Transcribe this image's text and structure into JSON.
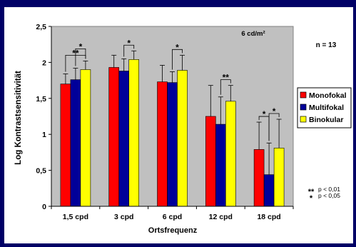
{
  "slide": {
    "background": "#000066",
    "panel_color": "#ffffff"
  },
  "chart_data": {
    "type": "bar",
    "xlabel": "Ortsfrequenz",
    "ylabel": "Log Kontrastsensitivität",
    "ylim": [
      0,
      2.5
    ],
    "yticks": [
      "0",
      "0,5",
      "1",
      "1,5",
      "2",
      "2,5"
    ],
    "plot_background": "#c0c0c0",
    "grid": false,
    "categories": [
      "1,5 cpd",
      "3 cpd",
      "6 cpd",
      "12 cpd",
      "18 cpd"
    ],
    "series": [
      {
        "name": "Monofokal",
        "color": "#ff0000",
        "values": [
          1.7,
          1.93,
          1.73,
          1.25,
          0.79
        ],
        "errors": [
          0.14,
          0.17,
          0.23,
          0.43,
          0.38
        ]
      },
      {
        "name": "Multifokal",
        "color": "#000099",
        "values": [
          1.76,
          1.88,
          1.72,
          1.14,
          0.44
        ],
        "errors": [
          0.16,
          0.17,
          0.15,
          0.38,
          0.44
        ]
      },
      {
        "name": "Binokular",
        "color": "#ffff00",
        "values": [
          1.9,
          2.04,
          1.89,
          1.46,
          0.81
        ],
        "errors": [
          0.12,
          0.12,
          0.21,
          0.22,
          0.4
        ]
      }
    ],
    "legend_position": "right",
    "annotations": {
      "condition": "6 cd/m²",
      "n": "n = 13"
    },
    "significance_legend": [
      {
        "symbol": "**",
        "text": "p < 0,01"
      },
      {
        "symbol": "*",
        "text": "p < 0,05"
      }
    ],
    "significance_brackets": [
      {
        "category": 0,
        "from": 0,
        "to": 2,
        "symbol": "**"
      },
      {
        "category": 0,
        "from": 1,
        "to": 2,
        "symbol": "*"
      },
      {
        "category": 1,
        "from": 1,
        "to": 2,
        "symbol": "*"
      },
      {
        "category": 2,
        "from": 1,
        "to": 2,
        "symbol": "*"
      },
      {
        "category": 3,
        "from": 1,
        "to": 2,
        "symbol": "**"
      },
      {
        "category": 4,
        "from": 0,
        "to": 1,
        "symbol": "*"
      },
      {
        "category": 4,
        "from": 1,
        "to": 2,
        "symbol": "*"
      }
    ]
  }
}
